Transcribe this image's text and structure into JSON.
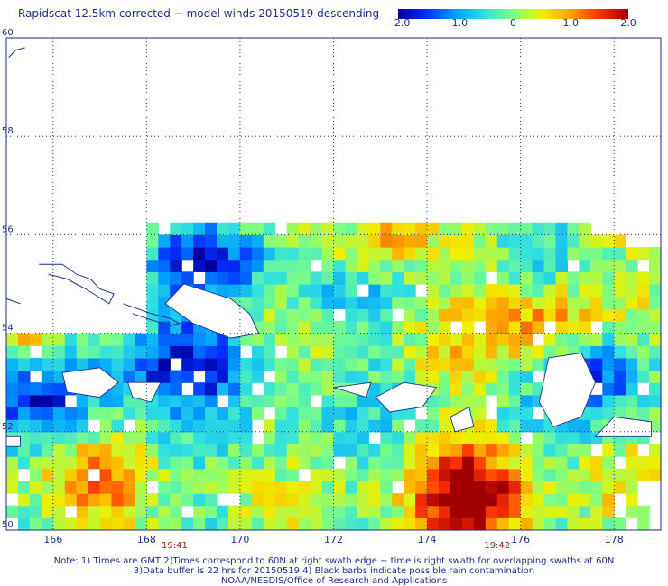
{
  "title": "Rapidscat 12.5km corrected − model winds 20150519 descending",
  "colorbar": {
    "ticks": [
      "−2.0",
      "−1.0",
      "0",
      "1.0",
      "2.0"
    ],
    "tick_values": [
      -2.0,
      -1.0,
      0,
      1.0,
      2.0
    ],
    "range": [
      -2.0,
      2.0
    ],
    "colors": [
      "#0000a0",
      "#0030ff",
      "#00a0ff",
      "#30e0e0",
      "#80ff80",
      "#f0f000",
      "#ffa000",
      "#ff3000",
      "#a00000"
    ]
  },
  "map": {
    "lon_range": [
      165,
      179
    ],
    "lat_range": [
      50,
      60
    ],
    "lon_ticks": [
      "166",
      "168",
      "170",
      "172",
      "174",
      "176",
      "178"
    ],
    "lon_tick_values": [
      166,
      168,
      170,
      172,
      174,
      176,
      178
    ],
    "lat_ticks": [
      "50",
      "52",
      "54",
      "56",
      "58",
      "60"
    ],
    "lat_tick_values": [
      50,
      52,
      54,
      56,
      58,
      60
    ],
    "grid": "dotted",
    "land_color": "#ffffff",
    "coast_color": "#1e2f8a"
  },
  "time_labels": [
    {
      "text": "19:41",
      "lon": 168.6
    },
    {
      "text": "19:42",
      "lon": 175.5
    }
  ],
  "notes": [
    "Note: 1) Times are GMT 2)Times correspond to 60N at right swath edge − time is right swath for overlapping swaths at 60N",
    "3)Data buffer is 22 hrs for 20150519 4) Black barbs indicate possible rain contamination",
    "NOAA/NESDIS/Office of Research and Applications"
  ]
}
